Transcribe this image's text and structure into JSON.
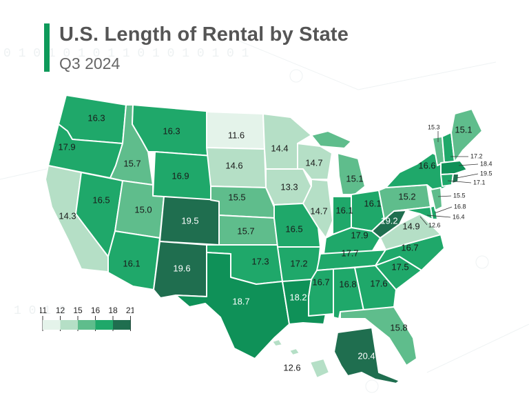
{
  "header": {
    "title": "U.S. Length of Rental by State",
    "subtitle": "Q3 2024"
  },
  "colors": {
    "c1": "#e4f3ea",
    "c2": "#b5dfc6",
    "c3": "#5fbd8c",
    "c4": "#1fa86a",
    "c5": "#0f9158",
    "c6": "#1f6e4f",
    "accent": "#0e9a5a"
  },
  "legend": {
    "ticks": [
      "11",
      "12",
      "15",
      "16",
      "18",
      "21"
    ]
  },
  "states": {
    "WA": "16.3",
    "OR": "17.9",
    "CA": "14.3",
    "NV": "16.5",
    "ID": "15.7",
    "MT": "16.3",
    "WY": "16.9",
    "UT": "15.0",
    "AZ": "16.1",
    "CO": "19.5",
    "NM": "19.6",
    "ND": "11.6",
    "SD": "14.6",
    "NE": "15.5",
    "KS": "15.7",
    "OK": "17.3",
    "TX": "18.7",
    "MN": "14.4",
    "IA": "13.3",
    "MO": "16.5",
    "AR": "17.2",
    "LA": "18.2",
    "WI": "14.7",
    "IL": "14.7",
    "MI": "15.1",
    "IN": "16.1",
    "OH": "16.1",
    "KY": "17.9",
    "TN": "17.7",
    "MS": "16.7",
    "AL": "16.8",
    "GA": "17.6",
    "FL": "15.8",
    "SC": "17.5",
    "NC": "16.7",
    "VA": "14.9",
    "WV": "19.2",
    "PA": "15.2",
    "NY": "16.6",
    "ME": "15.1",
    "VT": "15.3",
    "NH": "17.2",
    "MA": "18.4",
    "RI": "19.5",
    "CT": "17.1",
    "NJ": "15.5",
    "DE": "16.8",
    "MD": "16.4",
    "DC": "12.6",
    "AK": "20.4",
    "HI": "12.6"
  }
}
